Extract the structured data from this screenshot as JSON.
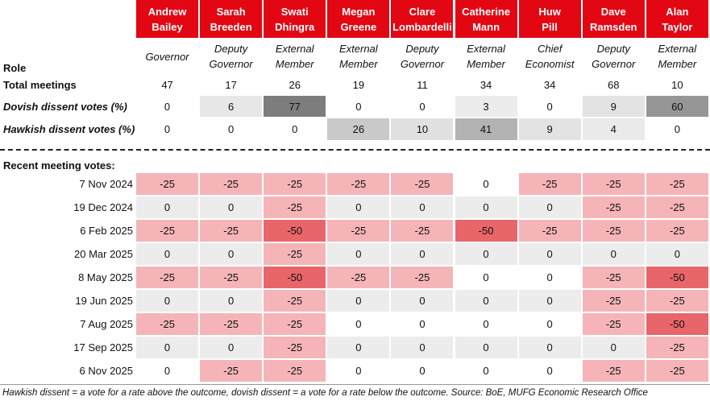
{
  "members": [
    {
      "name": "Andrew Bailey",
      "role": "Governor",
      "total_meetings": 47,
      "dovish_dissent": 0,
      "hawkish_dissent": 0
    },
    {
      "name": "Sarah Breeden",
      "role": "Deputy Governor",
      "total_meetings": 17,
      "dovish_dissent": 6,
      "hawkish_dissent": 0
    },
    {
      "name": "Swati Dhingra",
      "role": "External Member",
      "total_meetings": 26,
      "dovish_dissent": 77,
      "hawkish_dissent": 0
    },
    {
      "name": "Megan Greene",
      "role": "External Member",
      "total_meetings": 19,
      "dovish_dissent": 0,
      "hawkish_dissent": 26
    },
    {
      "name": "Clare Lombardelli",
      "role": "Deputy Governor",
      "total_meetings": 11,
      "dovish_dissent": 0,
      "hawkish_dissent": 10
    },
    {
      "name": "Catherine Mann",
      "role": "External Member",
      "total_meetings": 34,
      "dovish_dissent": 3,
      "hawkish_dissent": 41
    },
    {
      "name": "Huw Pill",
      "role": "Chief Economist",
      "total_meetings": 34,
      "dovish_dissent": 0,
      "hawkish_dissent": 9
    },
    {
      "name": "Dave Ramsden",
      "role": "Deputy Governor",
      "total_meetings": 68,
      "dovish_dissent": 9,
      "hawkish_dissent": 4
    },
    {
      "name": "Alan Taylor",
      "role": "External Member",
      "total_meetings": 10,
      "dovish_dissent": 60,
      "hawkish_dissent": 0
    }
  ],
  "row_labels": {
    "role": "Role",
    "total_meetings": "Total meetings",
    "dovish_dissent": "Dovish dissent votes (%)",
    "hawkish_dissent": "Hawkish dissent votes (%)"
  },
  "section_label": "Recent meeting votes:",
  "meetings": [
    {
      "date": "7 Nov 2024",
      "votes": [
        -25,
        -25,
        -25,
        -25,
        -25,
        0,
        -25,
        -25,
        -25
      ]
    },
    {
      "date": "19 Dec 2024",
      "votes": [
        0,
        0,
        -25,
        0,
        0,
        0,
        0,
        -25,
        -25
      ]
    },
    {
      "date": "6 Feb 2025",
      "votes": [
        -25,
        -25,
        -50,
        -25,
        -25,
        -50,
        -25,
        -25,
        -25
      ]
    },
    {
      "date": "20 Mar 2025",
      "votes": [
        0,
        0,
        -25,
        0,
        0,
        0,
        0,
        0,
        0
      ]
    },
    {
      "date": "8 May 2025",
      "votes": [
        -25,
        -25,
        -50,
        -25,
        -25,
        0,
        0,
        -25,
        -50
      ]
    },
    {
      "date": "19 Jun 2025",
      "votes": [
        0,
        0,
        -25,
        0,
        0,
        0,
        0,
        -25,
        -25
      ]
    },
    {
      "date": "7 Aug 2025",
      "votes": [
        -25,
        -25,
        -25,
        0,
        0,
        0,
        0,
        -25,
        -50
      ]
    },
    {
      "date": "17 Sep 2025",
      "votes": [
        0,
        0,
        -25,
        0,
        0,
        0,
        0,
        0,
        -25
      ]
    },
    {
      "date": "6 Nov 2025",
      "votes": [
        0,
        -25,
        -25,
        0,
        0,
        0,
        0,
        -25,
        -25
      ]
    }
  ],
  "footnote": "Hawkish dissent = a vote for a rate above the outcome, dovish dissent = a vote for a rate below the outcome. Source: BoE, MUFG Economic Research Office"
}
